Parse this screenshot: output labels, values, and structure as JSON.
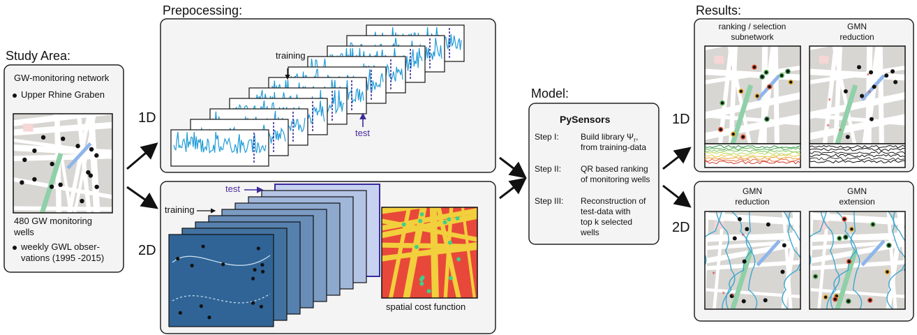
{
  "sections": {
    "study_area": "Study Area:",
    "preprocessing": "Prepocessing:",
    "model": "Model:",
    "results": "Results:"
  },
  "study_area": {
    "network_label": "GW-monitoring network",
    "region_label": "Upper Rhine Graben",
    "wells_count": "480 GW monitoring",
    "wells_count_2": "wells",
    "obs_line1": "weekly GWL obser-",
    "obs_line2": "vations (1995 -2015)"
  },
  "dimensions": {
    "d1": "1D",
    "d2": "2D"
  },
  "preprocessing": {
    "training_label_1d": "training",
    "test_label_1d": "test",
    "training_label_2d": "training",
    "test_label_2d": "test",
    "cost_function_label": "spatial cost function"
  },
  "model": {
    "title": "PySensors",
    "steps": [
      {
        "label": "Step I:",
        "text_1": "Build library Ψ",
        "text_sub": "r",
        "text_2": "from training-data"
      },
      {
        "label": "Step II:",
        "text_1": "QR based ranking",
        "text_2": "of monitoring wells"
      },
      {
        "label": "Step III:",
        "text_1": "Reconstruction of",
        "text_2": "test-data with",
        "text_3": "top k selected",
        "text_4": "wells"
      }
    ]
  },
  "results": {
    "r1d_left_title_1": "ranking / selection",
    "r1d_left_title_2": "subnetwork",
    "r1d_right_title_1": "GMN",
    "r1d_right_title_2": "reduction",
    "r2d_left_title_1": "GMN",
    "r2d_left_title_2": "reduction",
    "r2d_right_title_1": "GMN",
    "r2d_right_title_2": "extension"
  },
  "colors": {
    "timeseries": "#1f9ad6",
    "test_marker": "#3b2a9c",
    "map_bg": "#d8d6d2",
    "map_street": "#ffffff",
    "map_park": "#8fd0a8",
    "map_water": "#8fb5ea",
    "cost_bg": "#e8483a",
    "cost_street": "#f2cf3c",
    "cost_dot": "#3fcf8a",
    "well_dot": "#111111",
    "contour": "#3ea6cf"
  }
}
